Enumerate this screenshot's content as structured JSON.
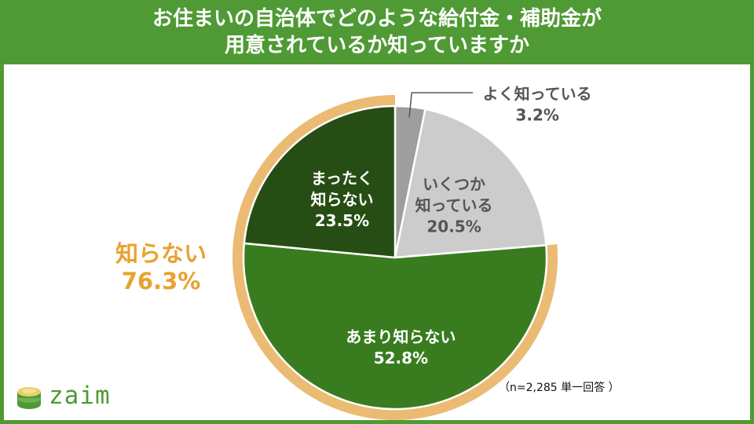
{
  "header": {
    "line1": "お住まいの自治体でどのような給付金・補助金が",
    "line2": "用意されているか知っていますか"
  },
  "chart_data": {
    "type": "pie",
    "slices": [
      {
        "label": "よく知っている",
        "value": 3.2,
        "value_label": "3.2%",
        "color": "#9e9e9e"
      },
      {
        "label": "いくつか知っている",
        "value": 20.5,
        "value_label": "20.5%",
        "color": "#cccccc"
      },
      {
        "label": "あまり知らない",
        "value": 52.8,
        "value_label": "52.8%",
        "color": "#397c20"
      },
      {
        "label": "まったく知らない",
        "value": 23.5,
        "value_label": "23.5%",
        "color": "#264e14"
      }
    ],
    "ring": {
      "label": "知らない",
      "value": 76.3,
      "value_label": "76.3%",
      "color": "#ebbb73",
      "covers": [
        "あまり知らない",
        "まったく知らない"
      ]
    },
    "slice_text_lines": {
      "よく知っている": [
        "よく知っている",
        "3.2%"
      ],
      "いくつか知っている": [
        "いくつか",
        "知っている",
        "20.5%"
      ],
      "あまり知らない": [
        "あまり知らない",
        "52.8%"
      ],
      "まったく知らない": [
        "まったく",
        "知らない",
        "23.5%"
      ]
    }
  },
  "note": "（n=2,285 単一回答 ）",
  "logo": {
    "text": "zaim"
  },
  "colors": {
    "brand": "#4f9a34",
    "ring": "#ebbb73",
    "ring_text": "#e8a22f"
  }
}
